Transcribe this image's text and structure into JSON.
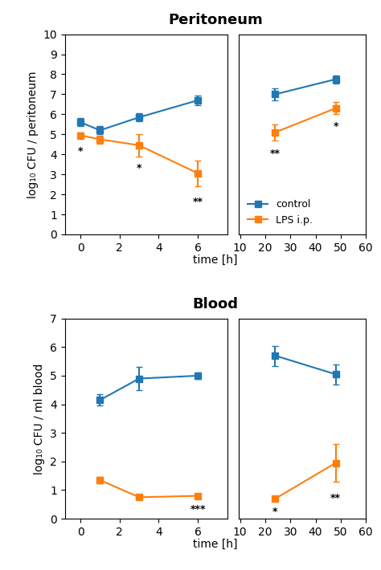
{
  "chart_data": [
    {
      "type": "line",
      "title": "Peritoneum",
      "xlabel": "time [h]",
      "ylabel": "log₁₀ CFU / peritoneum",
      "x": [
        0,
        1,
        3,
        6
      ],
      "xlim": [
        -0.8,
        7.5
      ],
      "xticks": [
        0,
        2,
        4,
        6
      ],
      "ylim": [
        0,
        10
      ],
      "yticks": [
        0,
        1,
        2,
        3,
        4,
        5,
        6,
        7,
        8,
        9,
        10
      ],
      "series": [
        {
          "name": "control",
          "marker": "square",
          "values": [
            5.6,
            5.2,
            5.85,
            6.7
          ],
          "yerr": [
            0.2,
            0.2,
            0.2,
            0.25
          ]
        },
        {
          "name": "LPS i.p.",
          "marker": "square",
          "values": [
            4.95,
            4.75,
            4.45,
            3.05
          ],
          "yerr": [
            0.15,
            0.2,
            0.55,
            0.65
          ]
        }
      ],
      "annotations": [
        {
          "x": 0,
          "y": 4.4,
          "text": "*"
        },
        {
          "x": 3,
          "y": 3.55,
          "text": "*"
        },
        {
          "x": 6,
          "y": 1.9,
          "text": "**"
        }
      ]
    },
    {
      "type": "line",
      "x": [
        24,
        48
      ],
      "xlim": [
        9.5,
        60
      ],
      "xticks": [
        10,
        20,
        30,
        40,
        50,
        60
      ],
      "ylim": [
        0,
        10
      ],
      "yticks": [
        0,
        1,
        2,
        3,
        4,
        5,
        6,
        7,
        8,
        9,
        10
      ],
      "tick_labels": "x",
      "legend": "lower left",
      "series": [
        {
          "name": "control",
          "marker": "square",
          "values": [
            7.0,
            7.75
          ],
          "yerr": [
            0.3,
            0.2
          ]
        },
        {
          "name": "LPS i.p.",
          "marker": "square",
          "values": [
            5.1,
            6.3
          ],
          "yerr": [
            0.4,
            0.3
          ]
        }
      ],
      "annotations": [
        {
          "x": 24,
          "y": 4.3,
          "text": "**"
        },
        {
          "x": 48,
          "y": 5.65,
          "text": "*"
        }
      ]
    },
    {
      "type": "line",
      "title": "Blood",
      "xlabel": "time [h]",
      "ylabel": "log₁₀ CFU / ml blood",
      "x": [
        1,
        3,
        6
      ],
      "xlim": [
        -0.8,
        7.5
      ],
      "xticks": [
        0,
        2,
        4,
        6
      ],
      "ylim": [
        0,
        7
      ],
      "yticks": [
        0,
        1,
        2,
        3,
        4,
        5,
        6,
        7
      ],
      "series": [
        {
          "name": "control",
          "marker": "square",
          "values": [
            4.15,
            4.9,
            5.0
          ],
          "yerr": [
            0.2,
            0.4,
            0.1
          ]
        },
        {
          "name": "LPS i.p.",
          "marker": "square",
          "values": [
            1.35,
            0.75,
            0.8
          ],
          "yerr": [
            0.1,
            0.08,
            0.08
          ]
        }
      ],
      "annotations": [
        {
          "x": 6,
          "y": 0.52,
          "text": "***"
        }
      ]
    },
    {
      "type": "line",
      "x": [
        24,
        48
      ],
      "xlim": [
        9.5,
        60
      ],
      "xticks": [
        10,
        20,
        30,
        40,
        50,
        60
      ],
      "ylim": [
        0,
        7
      ],
      "yticks": [
        0,
        1,
        2,
        3,
        4,
        5,
        6,
        7
      ],
      "tick_labels": "x",
      "series": [
        {
          "name": "control",
          "marker": "square",
          "values": [
            5.7,
            5.05
          ],
          "yerr": [
            0.35,
            0.35
          ]
        },
        {
          "name": "LPS i.p.",
          "marker": "square",
          "values": [
            0.7,
            1.95
          ],
          "yerr": [
            0.1,
            0.65
          ]
        }
      ],
      "annotations": [
        {
          "x": 24,
          "y": 0.42,
          "text": "*"
        },
        {
          "x": 48,
          "y": 0.9,
          "text": "**"
        }
      ]
    }
  ]
}
